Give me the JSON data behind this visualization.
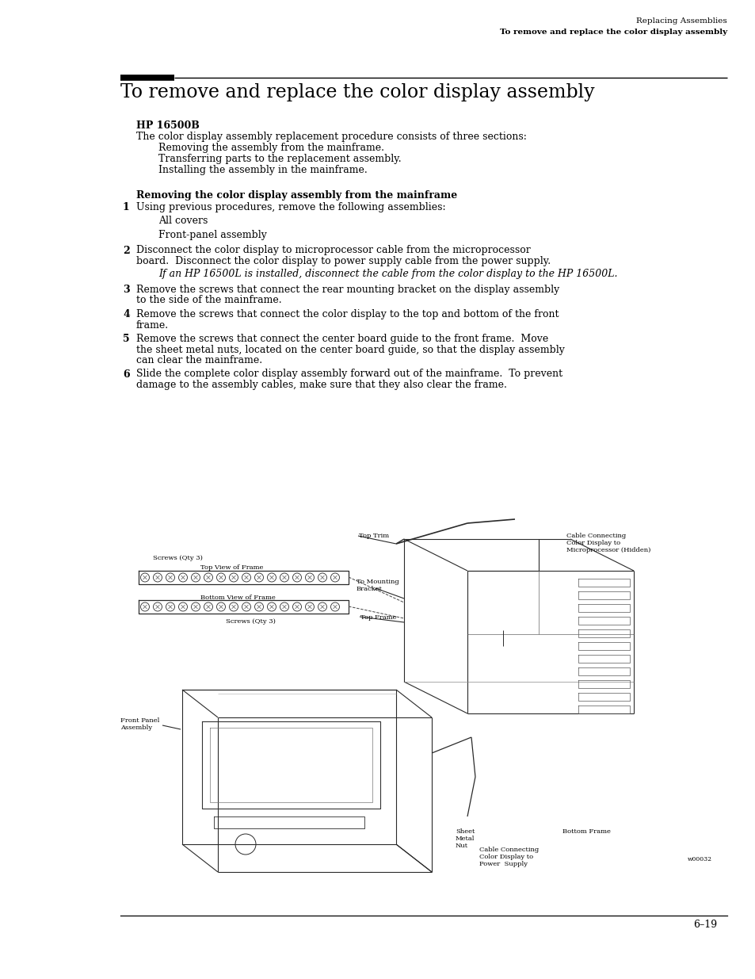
{
  "page_bg": "#ffffff",
  "header_line1": "Replacing Assemblies",
  "header_line2": "To remove and replace the color display assembly",
  "section_title": "To remove and replace the color display assembly",
  "hp_bold": "HP 16500B",
  "intro": "The color display assembly replacement procedure consists of three sections:",
  "bullets": [
    "Removing the assembly from the mainframe.",
    "Transferring parts to the replacement assembly.",
    "Installing the assembly in the mainframe."
  ],
  "section2": "Removing the color display assembly from the mainframe",
  "steps": [
    {
      "num": "1",
      "lines": [
        "Using previous procedures, remove the following assemblies:"
      ],
      "subs": [
        "All covers",
        "Front-panel assembly"
      ],
      "sub_italic": false
    },
    {
      "num": "2",
      "lines": [
        "Disconnect the color display to microprocessor cable from the microprocessor",
        "board.  Disconnect the color display to power supply cable from the power supply."
      ],
      "subs": [
        "If an HP 16500L is installed, disconnect the cable from the color display to the HP 16500L."
      ],
      "sub_italic": true
    },
    {
      "num": "3",
      "lines": [
        "Remove the screws that connect the rear mounting bracket on the display assembly",
        "to the side of the mainframe."
      ],
      "subs": [],
      "sub_italic": false
    },
    {
      "num": "4",
      "lines": [
        "Remove the screws that connect the color display to the top and bottom of the front",
        "frame."
      ],
      "subs": [],
      "sub_italic": false
    },
    {
      "num": "5",
      "lines": [
        "Remove the screws that connect the center board guide to the front frame.  Move",
        "the sheet metal nuts, located on the center board guide, so that the display assembly",
        "can clear the mainframe."
      ],
      "subs": [],
      "sub_italic": false
    },
    {
      "num": "6",
      "lines": [
        "Slide the complete color display assembly forward out of the mainframe.  To prevent",
        "damage to the assembly cables, make sure that they also clear the frame."
      ],
      "subs": [],
      "sub_italic": false
    }
  ],
  "footer_page": "6–19"
}
